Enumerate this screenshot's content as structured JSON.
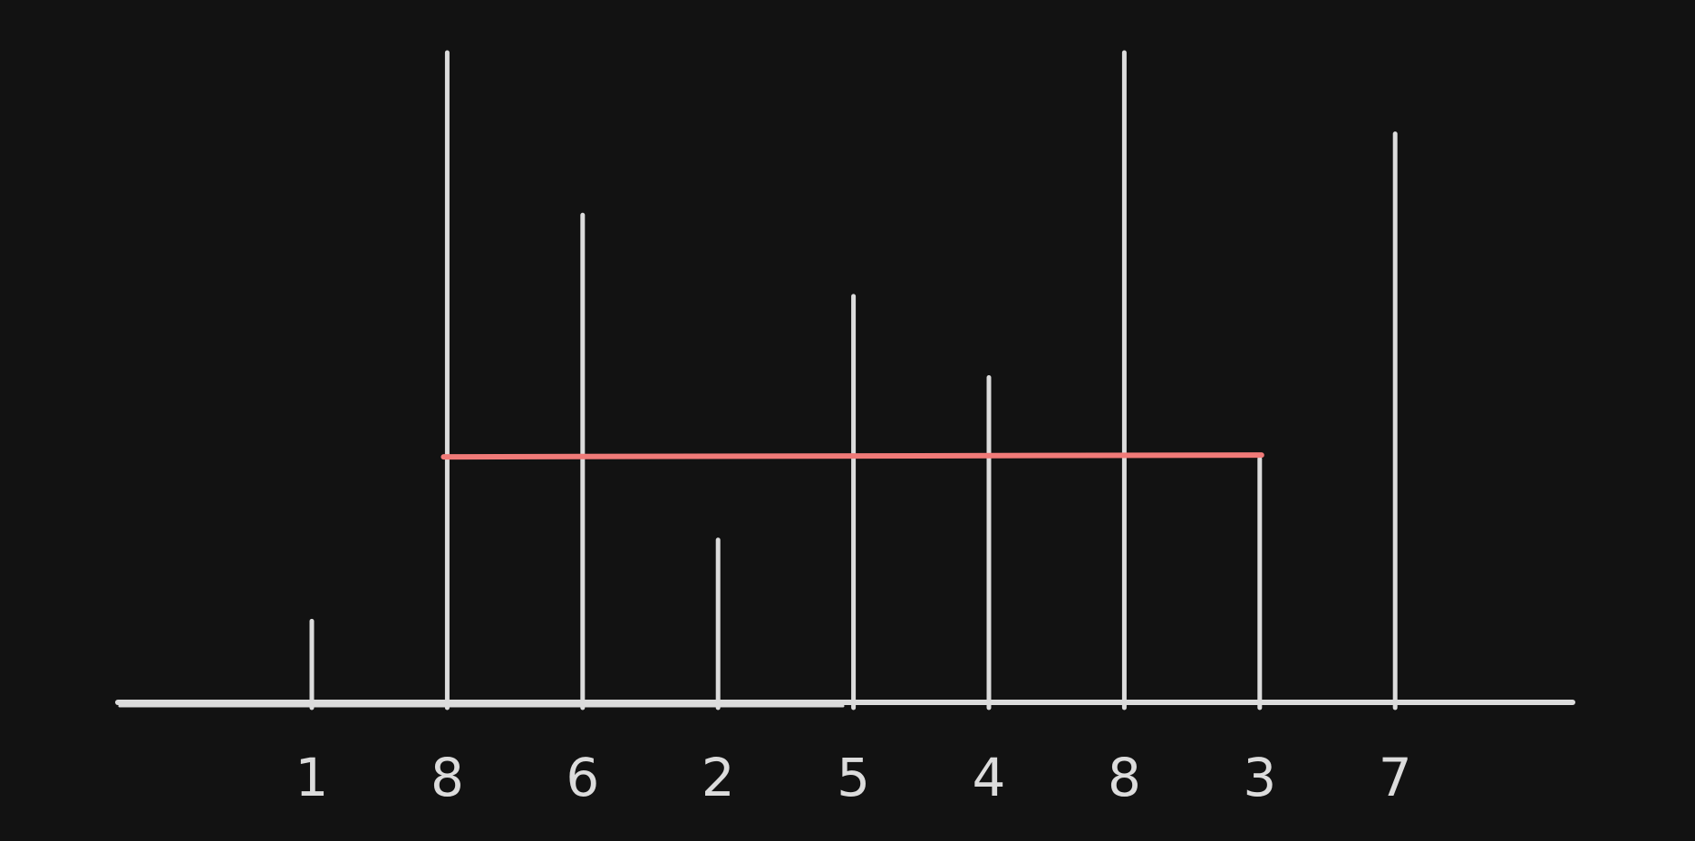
{
  "chart_data": {
    "type": "bar",
    "values": [
      1,
      8,
      6,
      2,
      5,
      4,
      8,
      3,
      7
    ],
    "labels": [
      "1",
      "8",
      "6",
      "2",
      "5",
      "4",
      "8",
      "3",
      "7"
    ],
    "highlight": {
      "from_index": 1,
      "to_index": 7,
      "level": 3
    },
    "ylim": [
      0,
      8
    ]
  },
  "colors": {
    "background": "#121212",
    "stroke": "#dcdcdc",
    "highlight": "#f07a78"
  }
}
